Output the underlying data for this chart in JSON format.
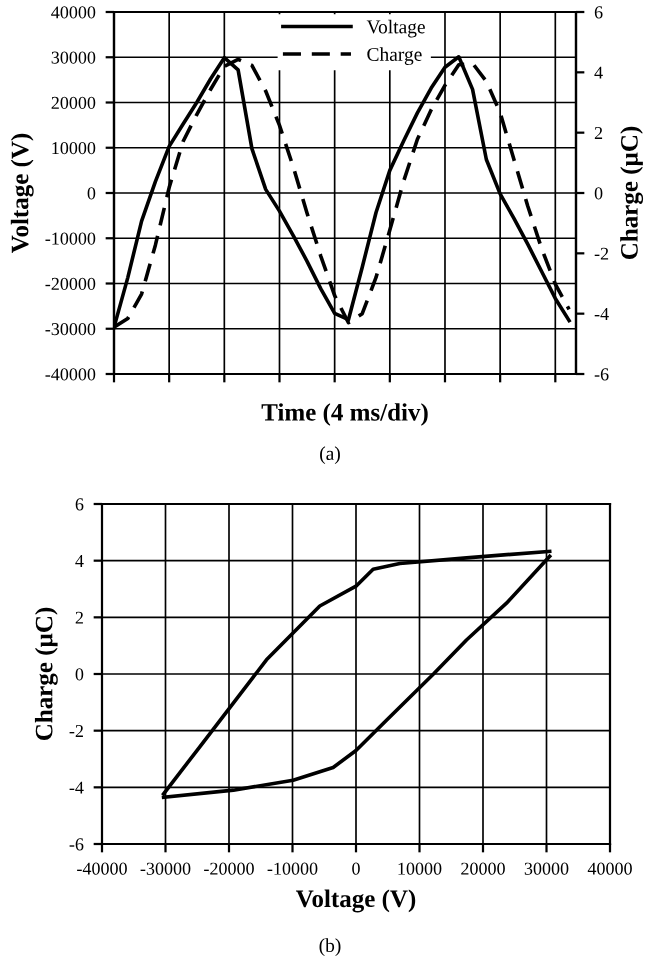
{
  "chart_data": [
    {
      "type": "line",
      "xlabel": "Time (4 ms/div)",
      "ylabel": "Voltage (V)",
      "y2label": "Charge (µC)",
      "annotations": [
        "(a)"
      ],
      "categories": [
        null,
        null,
        null,
        null,
        null,
        null,
        null,
        null,
        null,
        null,
        null,
        null,
        null,
        null,
        null,
        null,
        null,
        null,
        null,
        null,
        null,
        null,
        null,
        null,
        null,
        null,
        null,
        null,
        null,
        null,
        null,
        null,
        null,
        null
      ],
      "ylim": [
        -40000,
        40000
      ],
      "yticks": [
        -40000,
        -30000,
        -20000,
        -10000,
        0,
        10000,
        20000,
        30000,
        40000
      ],
      "y2lim": [
        -6,
        6
      ],
      "y2ticks": [
        -6,
        -4,
        -2,
        0,
        2,
        4,
        6
      ],
      "grid": true,
      "legend": "top",
      "series": [
        {
          "name": "Voltage",
          "color": "#000000",
          "line_style": "solid",
          "values": [
            -29700,
            -18700,
            -6200,
            2500,
            10300,
            15200,
            20000,
            25200,
            29900,
            27200,
            9800,
            800,
            -4000,
            -9400,
            -15100,
            -21200,
            -26600,
            -28000,
            -16400,
            -4300,
            5000,
            11500,
            17700,
            23200,
            27800,
            30100,
            22900,
            7400,
            -200,
            -5600,
            -11300,
            -17300,
            -23300,
            -28200
          ]
        },
        {
          "name": "Charge",
          "color": "#000000",
          "line_style": "dashed",
          "axis": "y2",
          "values": [
            -4.45,
            -4.16,
            -3.35,
            -1.73,
            0.18,
            1.7,
            2.6,
            3.43,
            4.2,
            4.43,
            4.23,
            3.38,
            2.24,
            0.86,
            -0.67,
            -2.1,
            -3.4,
            -4.3,
            -4.0,
            -2.8,
            -1.23,
            0.39,
            1.78,
            2.76,
            3.57,
            4.25,
            4.3,
            3.7,
            2.66,
            1.11,
            -0.43,
            -1.83,
            -3.02,
            -3.86
          ]
        }
      ]
    },
    {
      "type": "line",
      "xlabel": "Voltage (V)",
      "ylabel": "Charge (µC)",
      "annotations": [
        "(b)"
      ],
      "xlim": [
        -40000,
        40000
      ],
      "xticks": [
        -40000,
        -30000,
        -20000,
        -10000,
        0,
        10000,
        20000,
        30000,
        40000
      ],
      "ylim": [
        -6,
        6
      ],
      "yticks": [
        -6,
        -4,
        -2,
        0,
        2,
        4,
        6
      ],
      "grid": true,
      "series": [
        {
          "color": "#000000",
          "line_style": "solid",
          "x": [
            -30300,
            -24600,
            -14100,
            -5700,
            0,
            2700,
            6900,
            17400,
            30500
          ],
          "values": [
            -4.23,
            -2.57,
            0.5,
            2.4,
            3.1,
            3.7,
            3.9,
            4.1,
            4.33
          ]
        },
        {
          "color": "#000000",
          "line_style": "solid",
          "x": [
            -30300,
            -19300,
            -9900,
            -3600,
            0,
            4800,
            12200,
            17400,
            23700,
            30500
          ],
          "values": [
            -4.35,
            -4.1,
            -3.75,
            -3.3,
            -2.7,
            -1.63,
            0,
            1.2,
            2.5,
            4.15
          ]
        }
      ]
    }
  ]
}
